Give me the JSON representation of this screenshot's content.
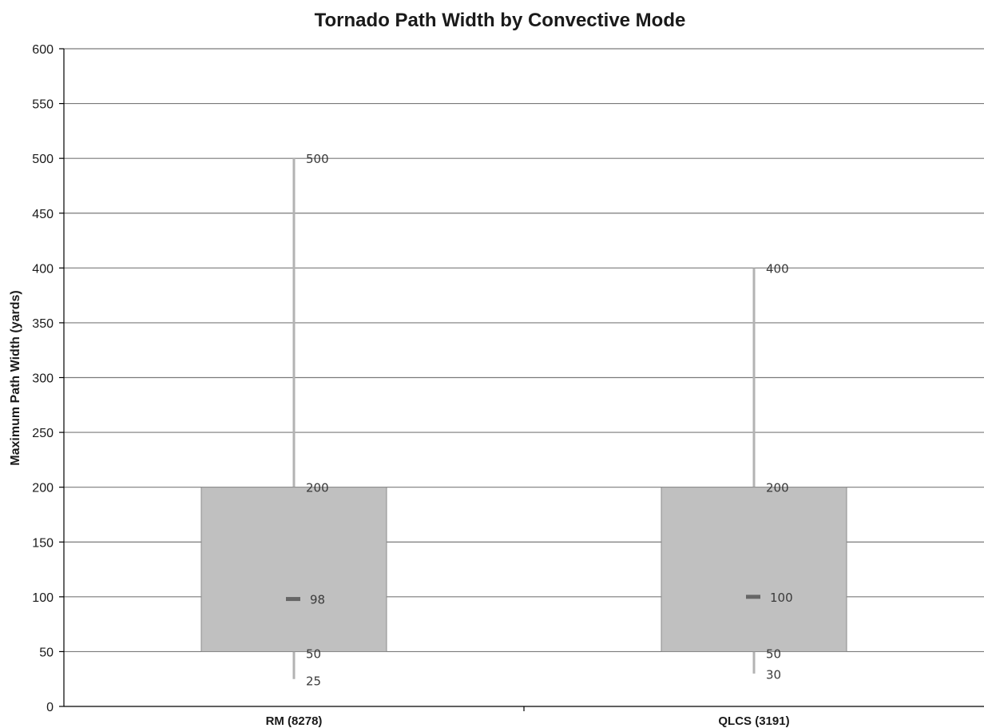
{
  "chart_data": {
    "type": "box",
    "title": "Tornado Path Width by Convective Mode",
    "xlabel": "",
    "ylabel": "Maximum Path Width (yards)",
    "ylim": [
      0,
      600
    ],
    "yticks": [
      0,
      50,
      100,
      150,
      200,
      250,
      300,
      350,
      400,
      450,
      500,
      550,
      600
    ],
    "grid": true,
    "categories": [
      "RM (8278)",
      "QLCS (3191)"
    ],
    "boxes": [
      {
        "category": "RM (8278)",
        "min": 25,
        "q1": 50,
        "median": 98,
        "q3": 200,
        "max": 500
      },
      {
        "category": "QLCS (3191)",
        "min": 30,
        "q1": 50,
        "median": 100,
        "q3": 200,
        "max": 400
      }
    ],
    "colors": {
      "box_fill": "#c0c0c0",
      "box_edge": "#8c8c8c",
      "whisker": "#b3b3b3",
      "median": "#666666",
      "grid": "#7a7a7a",
      "axis": "#000000"
    }
  }
}
